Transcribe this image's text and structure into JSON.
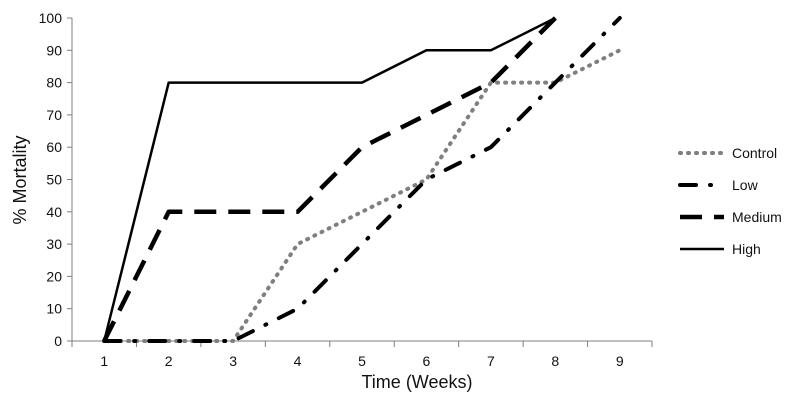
{
  "chart_data": {
    "type": "line",
    "title": "",
    "xlabel": "Time (Weeks)",
    "ylabel": "% Mortality",
    "x": [
      1,
      2,
      3,
      4,
      5,
      6,
      7,
      8,
      9
    ],
    "xlim": [
      0.5,
      9.5
    ],
    "ylim": [
      0,
      100
    ],
    "yticks": [
      0,
      10,
      20,
      30,
      40,
      50,
      60,
      70,
      80,
      90,
      100
    ],
    "xtick_labels": [
      "1",
      "2",
      "3",
      "4",
      "5",
      "6",
      "7",
      "8",
      "9"
    ],
    "grid": false,
    "legend_position": "right",
    "series": [
      {
        "name": "Control",
        "points": [
          [
            1,
            0
          ],
          [
            2,
            0
          ],
          [
            3,
            0
          ],
          [
            4,
            30
          ],
          [
            5,
            40
          ],
          [
            6,
            50
          ],
          [
            7,
            80
          ],
          [
            8,
            80
          ],
          [
            9,
            90
          ]
        ],
        "style": "dotted",
        "color": "#7f7f7f"
      },
      {
        "name": "Low",
        "points": [
          [
            1,
            0
          ],
          [
            2,
            0
          ],
          [
            3,
            0
          ],
          [
            4,
            10
          ],
          [
            5,
            30
          ],
          [
            6,
            50
          ],
          [
            7,
            60
          ],
          [
            8,
            80
          ],
          [
            9,
            100
          ]
        ],
        "style": "dash-dot",
        "color": "#000000"
      },
      {
        "name": "Medium",
        "points": [
          [
            1,
            0
          ],
          [
            2,
            40
          ],
          [
            3,
            40
          ],
          [
            4,
            40
          ],
          [
            5,
            60
          ],
          [
            6,
            70
          ],
          [
            7,
            80
          ],
          [
            8,
            100
          ]
        ],
        "style": "long-dash",
        "color": "#000000"
      },
      {
        "name": "High",
        "points": [
          [
            1,
            0
          ],
          [
            2,
            80
          ],
          [
            3,
            80
          ],
          [
            4,
            80
          ],
          [
            5,
            80
          ],
          [
            6,
            90
          ],
          [
            7,
            90
          ],
          [
            8,
            100
          ]
        ],
        "style": "solid",
        "color": "#000000"
      }
    ]
  }
}
